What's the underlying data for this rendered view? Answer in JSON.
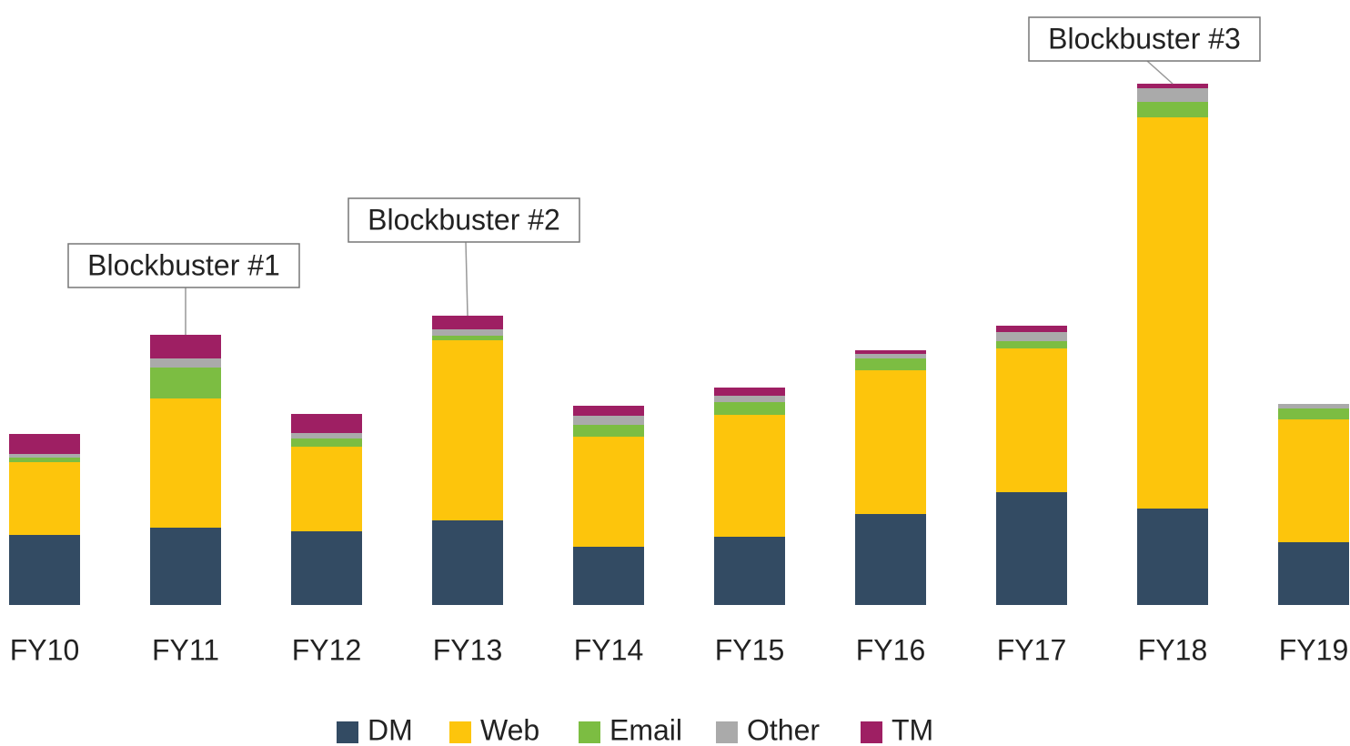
{
  "chart_data": {
    "type": "stacked_bar",
    "categories": [
      "FY10",
      "FY11",
      "FY12",
      "FY13",
      "FY14",
      "FY15",
      "FY16",
      "FY17",
      "FY18",
      "FY19"
    ],
    "series": [
      {
        "name": "DM",
        "color": "#334b63",
        "values": [
          77,
          85,
          81,
          93,
          64,
          75,
          100,
          124,
          106,
          69
        ]
      },
      {
        "name": "Web",
        "color": "#fdc50c",
        "values": [
          80,
          142,
          93,
          198,
          121,
          134,
          158,
          158,
          430,
          135
        ]
      },
      {
        "name": "Email",
        "color": "#7cbd42",
        "values": [
          5,
          34,
          9,
          5,
          13,
          14,
          13,
          8,
          17,
          12
        ]
      },
      {
        "name": "Other",
        "color": "#aaaaaa",
        "values": [
          4,
          10,
          6,
          7,
          10,
          7,
          5,
          10,
          15,
          5
        ]
      },
      {
        "name": "TM",
        "color": "#9e1f63",
        "values": [
          22,
          26,
          21,
          15,
          11,
          9,
          4,
          7,
          5,
          0
        ]
      }
    ],
    "ylim": [
      0,
      580
    ],
    "annotations": [
      {
        "text": "Blockbuster #1",
        "category": "FY11"
      },
      {
        "text": "Blockbuster #2",
        "category": "FY13"
      },
      {
        "text": "Blockbuster #3",
        "category": "FY18"
      }
    ],
    "legend": "bottom"
  }
}
